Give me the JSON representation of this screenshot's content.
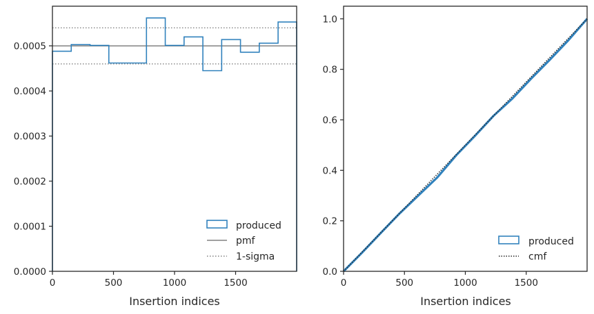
{
  "colors": {
    "produced": "#3182bd",
    "pmf": "#808080",
    "sigma": "#808080",
    "cmf": "#262626",
    "axis": "#262626"
  },
  "chart_data": [
    {
      "type": "histogram",
      "xlabel": "Insertion indices",
      "ylabel": "",
      "xlim": [
        0,
        2000
      ],
      "ylim": [
        0,
        0.000588
      ],
      "xticks": [
        0,
        500,
        1000,
        1500
      ],
      "xtick_labels": [
        "0",
        "500",
        "1000",
        "1500"
      ],
      "yticks": [
        0,
        0.0001,
        0.0002,
        0.0003,
        0.0004,
        0.0005
      ],
      "ytick_labels": [
        "0.0000",
        "0.0001",
        "0.0002",
        "0.0003",
        "0.0004",
        "0.0005"
      ],
      "bin_edges": [
        0,
        154,
        308,
        462,
        616,
        770,
        924,
        1078,
        1232,
        1386,
        1540,
        1694,
        1848,
        2000
      ],
      "series": [
        {
          "name": "produced",
          "style": "step",
          "values": [
            0.000488,
            0.000503,
            0.000501,
            0.000462,
            0.000462,
            0.000562,
            0.000501,
            0.00052,
            0.000445,
            0.000514,
            0.000486,
            0.000506,
            0.000553
          ]
        },
        {
          "name": "pmf",
          "style": "hline",
          "value": 0.0005
        },
        {
          "name": "1-sigma",
          "style": "hline-dotted",
          "values": [
            0.00054,
            0.00046
          ]
        }
      ],
      "legend": {
        "placement": "lower-right",
        "entries": [
          "produced",
          "pmf",
          "1-sigma"
        ]
      }
    },
    {
      "type": "line",
      "xlabel": "Insertion indices",
      "ylabel": "",
      "xlim": [
        0,
        2000
      ],
      "ylim": [
        0,
        1.05
      ],
      "xticks": [
        0,
        500,
        1000,
        1500
      ],
      "xtick_labels": [
        "0",
        "500",
        "1000",
        "1500"
      ],
      "yticks": [
        0,
        0.2,
        0.4,
        0.6,
        0.8,
        1.0
      ],
      "ytick_labels": [
        "0.0",
        "0.2",
        "0.4",
        "0.6",
        "0.8",
        "1.0"
      ],
      "series": [
        {
          "name": "produced",
          "style": "step",
          "x": [
            0,
            154,
            308,
            462,
            616,
            770,
            924,
            1078,
            1232,
            1386,
            1540,
            1694,
            1848,
            2000
          ],
          "y": [
            0,
            0.075,
            0.153,
            0.23,
            0.301,
            0.372,
            0.459,
            0.536,
            0.616,
            0.684,
            0.763,
            0.838,
            0.916,
            1.0
          ]
        },
        {
          "name": "cmf",
          "style": "dotted",
          "x": [
            0,
            2000
          ],
          "y": [
            0,
            1.0
          ]
        }
      ],
      "legend": {
        "placement": "lower-right",
        "entries": [
          "produced",
          "cmf"
        ]
      }
    }
  ]
}
